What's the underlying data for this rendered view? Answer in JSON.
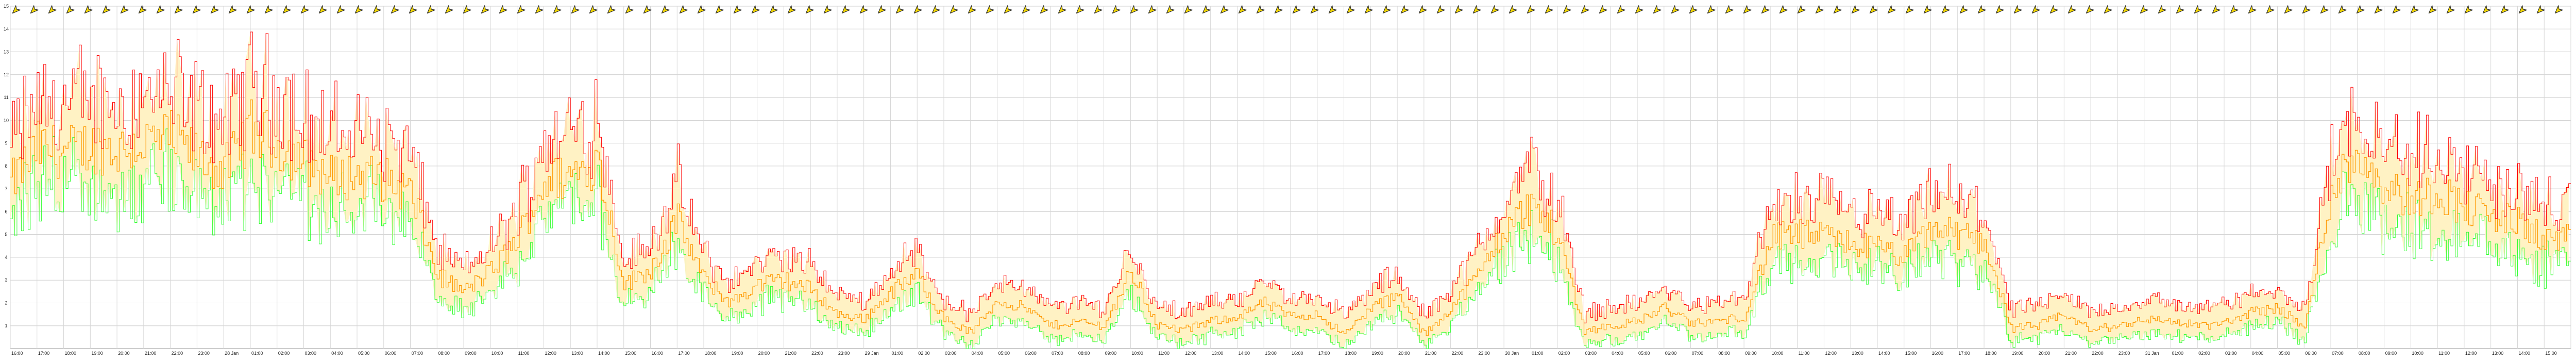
{
  "chart_data": {
    "type": "line",
    "title": "",
    "xlabel": "",
    "ylabel": "",
    "ylim": [
      0,
      15
    ],
    "yticks": [
      1,
      2,
      3,
      4,
      5,
      6,
      7,
      8,
      9,
      10,
      11,
      12,
      13,
      14,
      15
    ],
    "grid": true,
    "legend": "none",
    "x_tick_labels": [
      "16:00",
      "17:00",
      "18:00",
      "19:00",
      "20:00",
      "21:00",
      "22:00",
      "23:00",
      "28 Jan",
      "01:00",
      "02:00",
      "03:00",
      "04:00",
      "05:00",
      "06:00",
      "07:00",
      "08:00",
      "09:00",
      "10:00",
      "11:00",
      "12:00",
      "13:00",
      "14:00",
      "15:00",
      "16:00",
      "17:00",
      "18:00",
      "19:00",
      "20:00",
      "21:00",
      "22:00",
      "23:00",
      "29 Jan",
      "01:00",
      "02:00",
      "03:00",
      "04:00",
      "05:00",
      "06:00",
      "07:00",
      "08:00",
      "09:00",
      "10:00",
      "11:00",
      "12:00",
      "13:00",
      "14:00",
      "15:00",
      "16:00",
      "17:00",
      "18:00",
      "19:00",
      "20:00",
      "21:00",
      "22:00",
      "23:00",
      "30 Jan",
      "01:00",
      "02:00",
      "03:00",
      "04:00",
      "05:00",
      "06:00",
      "07:00",
      "08:00",
      "09:00",
      "10:00",
      "11:00",
      "12:00",
      "13:00",
      "14:00",
      "15:00",
      "16:00",
      "17:00",
      "18:00",
      "19:00",
      "20:00",
      "21:00",
      "22:00",
      "23:00",
      "31 Jan",
      "01:00",
      "02:00",
      "03:00",
      "04:00",
      "05:00",
      "06:00",
      "07:00",
      "08:00",
      "09:00",
      "10:00",
      "11:00",
      "12:00",
      "13:00",
      "14:00",
      "15:00"
    ],
    "x_hours_start": 16,
    "series_colors": {
      "gust": "#ff0000",
      "avg": "#ff9900",
      "min": "#33ff33"
    },
    "fill_color": "#fff2c4",
    "hourly_avg": [
      7.2,
      8.8,
      8.6,
      8.9,
      8.7,
      9.0,
      9.2,
      8.4,
      7.8,
      9.6,
      8.9,
      8.2,
      7.5,
      7.6,
      7.4,
      6.8,
      3.2,
      2.5,
      3.4,
      4.8,
      7.3,
      7.6,
      8.2,
      2.8,
      3.5,
      5.6,
      3.0,
      2.0,
      2.8,
      3.0,
      2.6,
      1.5,
      1.3,
      2.5,
      3.2,
      1.3,
      0.7,
      2.1,
      1.8,
      1.0,
      1.2,
      1.0,
      3.4,
      1.0,
      0.8,
      1.2,
      1.4,
      2.0,
      1.4,
      1.5,
      0.6,
      1.8,
      2.3,
      0.6,
      1.8,
      3.2,
      5.2,
      6.3,
      5.0,
      0.8,
      1.0,
      1.2,
      1.8,
      1.1,
      1.2,
      1.4,
      4.8,
      5.0,
      4.9,
      4.6,
      4.4,
      4.0,
      5.3,
      5.0,
      4.7,
      0.9,
      1.0,
      1.5,
      0.8,
      1.0,
      1.3,
      1.2,
      1.0,
      1.1,
      1.6,
      1.8,
      0.9,
      7.0,
      8.6,
      7.2,
      6.5,
      6.9,
      6.2,
      5.8,
      5.5,
      4.8
    ],
    "wind_direction_deg": 225
  },
  "icon": "wind-direction-arrow-icon"
}
